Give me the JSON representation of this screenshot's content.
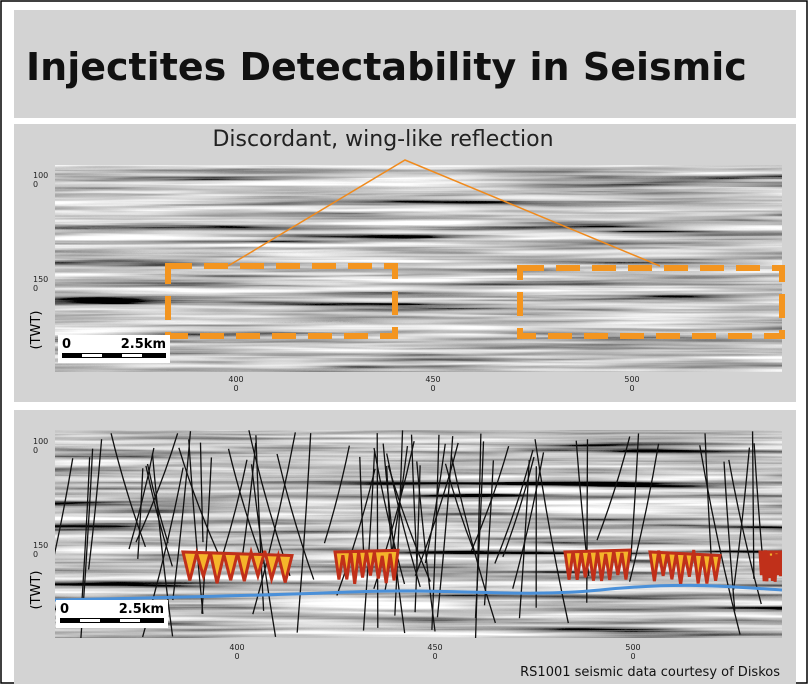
{
  "header": {
    "title": "Injectites Detectability in Seismic"
  },
  "top_panel": {
    "annotation": "Discordant, wing-like reflection",
    "y_axis_label": "(TWT)",
    "y_ticks": [
      [
        "100",
        "0"
      ],
      [
        "150",
        "0"
      ]
    ],
    "x_ticks": [
      [
        "400",
        "0"
      ],
      [
        "450",
        "0"
      ],
      [
        "500",
        "0"
      ]
    ],
    "scale_bar": [
      "0",
      "2.5km"
    ]
  },
  "bottom_panel": {
    "y_axis_label": "(TWT)",
    "y_ticks": [
      [
        "100",
        "0"
      ],
      [
        "150",
        "0"
      ]
    ],
    "x_ticks": [
      [
        "400",
        "0"
      ],
      [
        "450",
        "0"
      ],
      [
        "500",
        "0"
      ]
    ],
    "scale_bar": [
      "0",
      "2.5km"
    ],
    "credit": "RS1001 seismic data courtesy of Diskos"
  }
}
